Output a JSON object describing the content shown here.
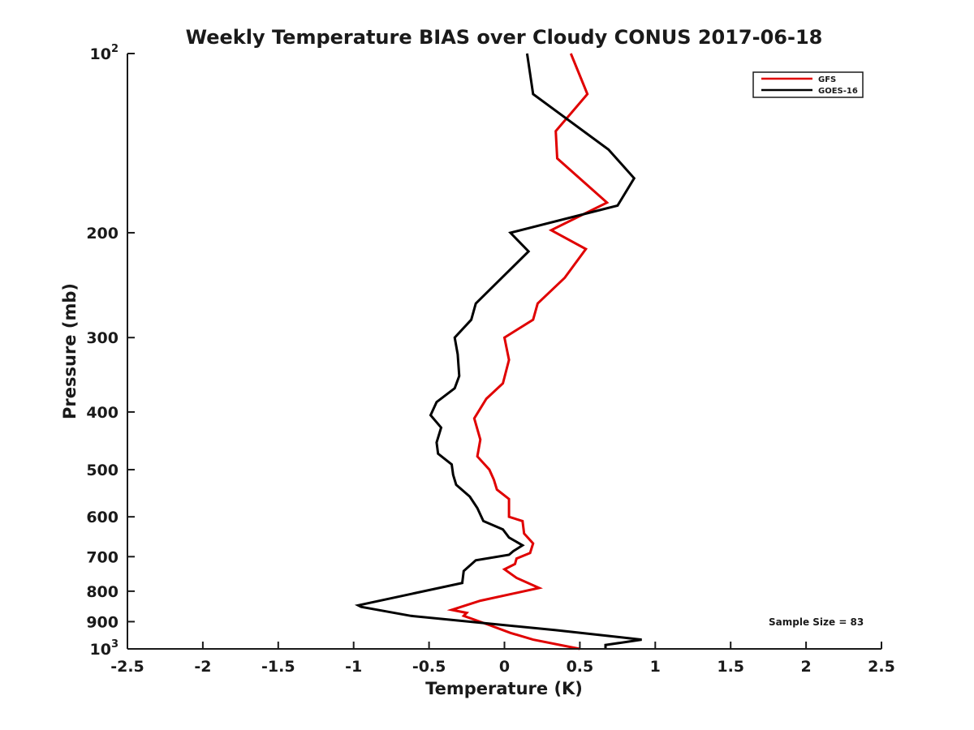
{
  "chart_data": {
    "type": "line",
    "title": "Weekly Temperature BIAS over Cloudy CONUS 2017-06-18",
    "xlabel": "Temperature (K)",
    "ylabel": "Pressure (mb)",
    "xlim": [
      -2.5,
      2.5
    ],
    "ylim": [
      1000,
      100
    ],
    "y_scale": "log",
    "y_reversed": true,
    "grid": false,
    "legend_position": "top-right",
    "x_ticks": [
      "-2.5",
      "-2",
      "-1.5",
      "-1",
      "-0.5",
      "0",
      "0.5",
      "1",
      "1.5",
      "2",
      "2.5"
    ],
    "x_tick_values": [
      -2.5,
      -2,
      -1.5,
      -1,
      -0.5,
      0,
      0.5,
      1,
      1.5,
      2,
      2.5
    ],
    "y_ticks": [
      {
        "value": 100,
        "base": "10",
        "exp": "2"
      },
      {
        "value": 200,
        "label": "200"
      },
      {
        "value": 300,
        "label": "300"
      },
      {
        "value": 400,
        "label": "400"
      },
      {
        "value": 500,
        "label": "500"
      },
      {
        "value": 600,
        "label": "600"
      },
      {
        "value": 700,
        "label": "700"
      },
      {
        "value": 800,
        "label": "800"
      },
      {
        "value": 900,
        "label": "900"
      },
      {
        "value": 1000,
        "base": "10",
        "exp": "3"
      }
    ],
    "series": [
      {
        "name": "GFS",
        "color": "#e00000",
        "points": [
          [
            0.44,
            100
          ],
          [
            0.55,
            117
          ],
          [
            0.34,
            135
          ],
          [
            0.35,
            150
          ],
          [
            0.68,
            178
          ],
          [
            0.31,
            198
          ],
          [
            0.54,
            213
          ],
          [
            0.4,
            238
          ],
          [
            0.22,
            263
          ],
          [
            0.19,
            280
          ],
          [
            0.0,
            300
          ],
          [
            0.03,
            327
          ],
          [
            -0.01,
            358
          ],
          [
            -0.12,
            380
          ],
          [
            -0.2,
            410
          ],
          [
            -0.16,
            445
          ],
          [
            -0.18,
            475
          ],
          [
            -0.1,
            500
          ],
          [
            -0.07,
            520
          ],
          [
            -0.05,
            540
          ],
          [
            0.03,
            560
          ],
          [
            0.03,
            600
          ],
          [
            0.12,
            610
          ],
          [
            0.13,
            640
          ],
          [
            0.19,
            665
          ],
          [
            0.17,
            690
          ],
          [
            0.08,
            705
          ],
          [
            0.07,
            720
          ],
          [
            0.0,
            735
          ],
          [
            0.08,
            760
          ],
          [
            0.23,
            790
          ],
          [
            -0.16,
            830
          ],
          [
            -0.35,
            860
          ],
          [
            -0.25,
            870
          ],
          [
            -0.27,
            880
          ],
          [
            -0.1,
            912
          ],
          [
            0.04,
            940
          ],
          [
            0.19,
            965
          ],
          [
            0.5,
            1000
          ]
        ]
      },
      {
        "name": "GOES-16",
        "color": "#000000",
        "points": [
          [
            0.15,
            100
          ],
          [
            0.19,
            117
          ],
          [
            0.69,
            145
          ],
          [
            0.86,
            162
          ],
          [
            0.75,
            180
          ],
          [
            0.04,
            200
          ],
          [
            0.16,
            215
          ],
          [
            -0.19,
            263
          ],
          [
            -0.22,
            280
          ],
          [
            -0.33,
            300
          ],
          [
            -0.31,
            320
          ],
          [
            -0.3,
            348
          ],
          [
            -0.33,
            365
          ],
          [
            -0.45,
            385
          ],
          [
            -0.49,
            405
          ],
          [
            -0.42,
            425
          ],
          [
            -0.45,
            450
          ],
          [
            -0.44,
            470
          ],
          [
            -0.35,
            490
          ],
          [
            -0.34,
            510
          ],
          [
            -0.32,
            530
          ],
          [
            -0.23,
            555
          ],
          [
            -0.18,
            580
          ],
          [
            -0.14,
            610
          ],
          [
            -0.01,
            630
          ],
          [
            0.03,
            650
          ],
          [
            0.12,
            670
          ],
          [
            0.06,
            685
          ],
          [
            0.03,
            695
          ],
          [
            -0.19,
            710
          ],
          [
            -0.27,
            740
          ],
          [
            -0.28,
            775
          ],
          [
            -0.97,
            845
          ],
          [
            -0.95,
            850
          ],
          [
            -0.62,
            880
          ],
          [
            0.34,
            930
          ],
          [
            0.67,
            950
          ],
          [
            0.91,
            965
          ],
          [
            0.67,
            985
          ],
          [
            0.67,
            1000
          ]
        ]
      }
    ],
    "annotations": [
      "Sample Size = 83"
    ]
  }
}
